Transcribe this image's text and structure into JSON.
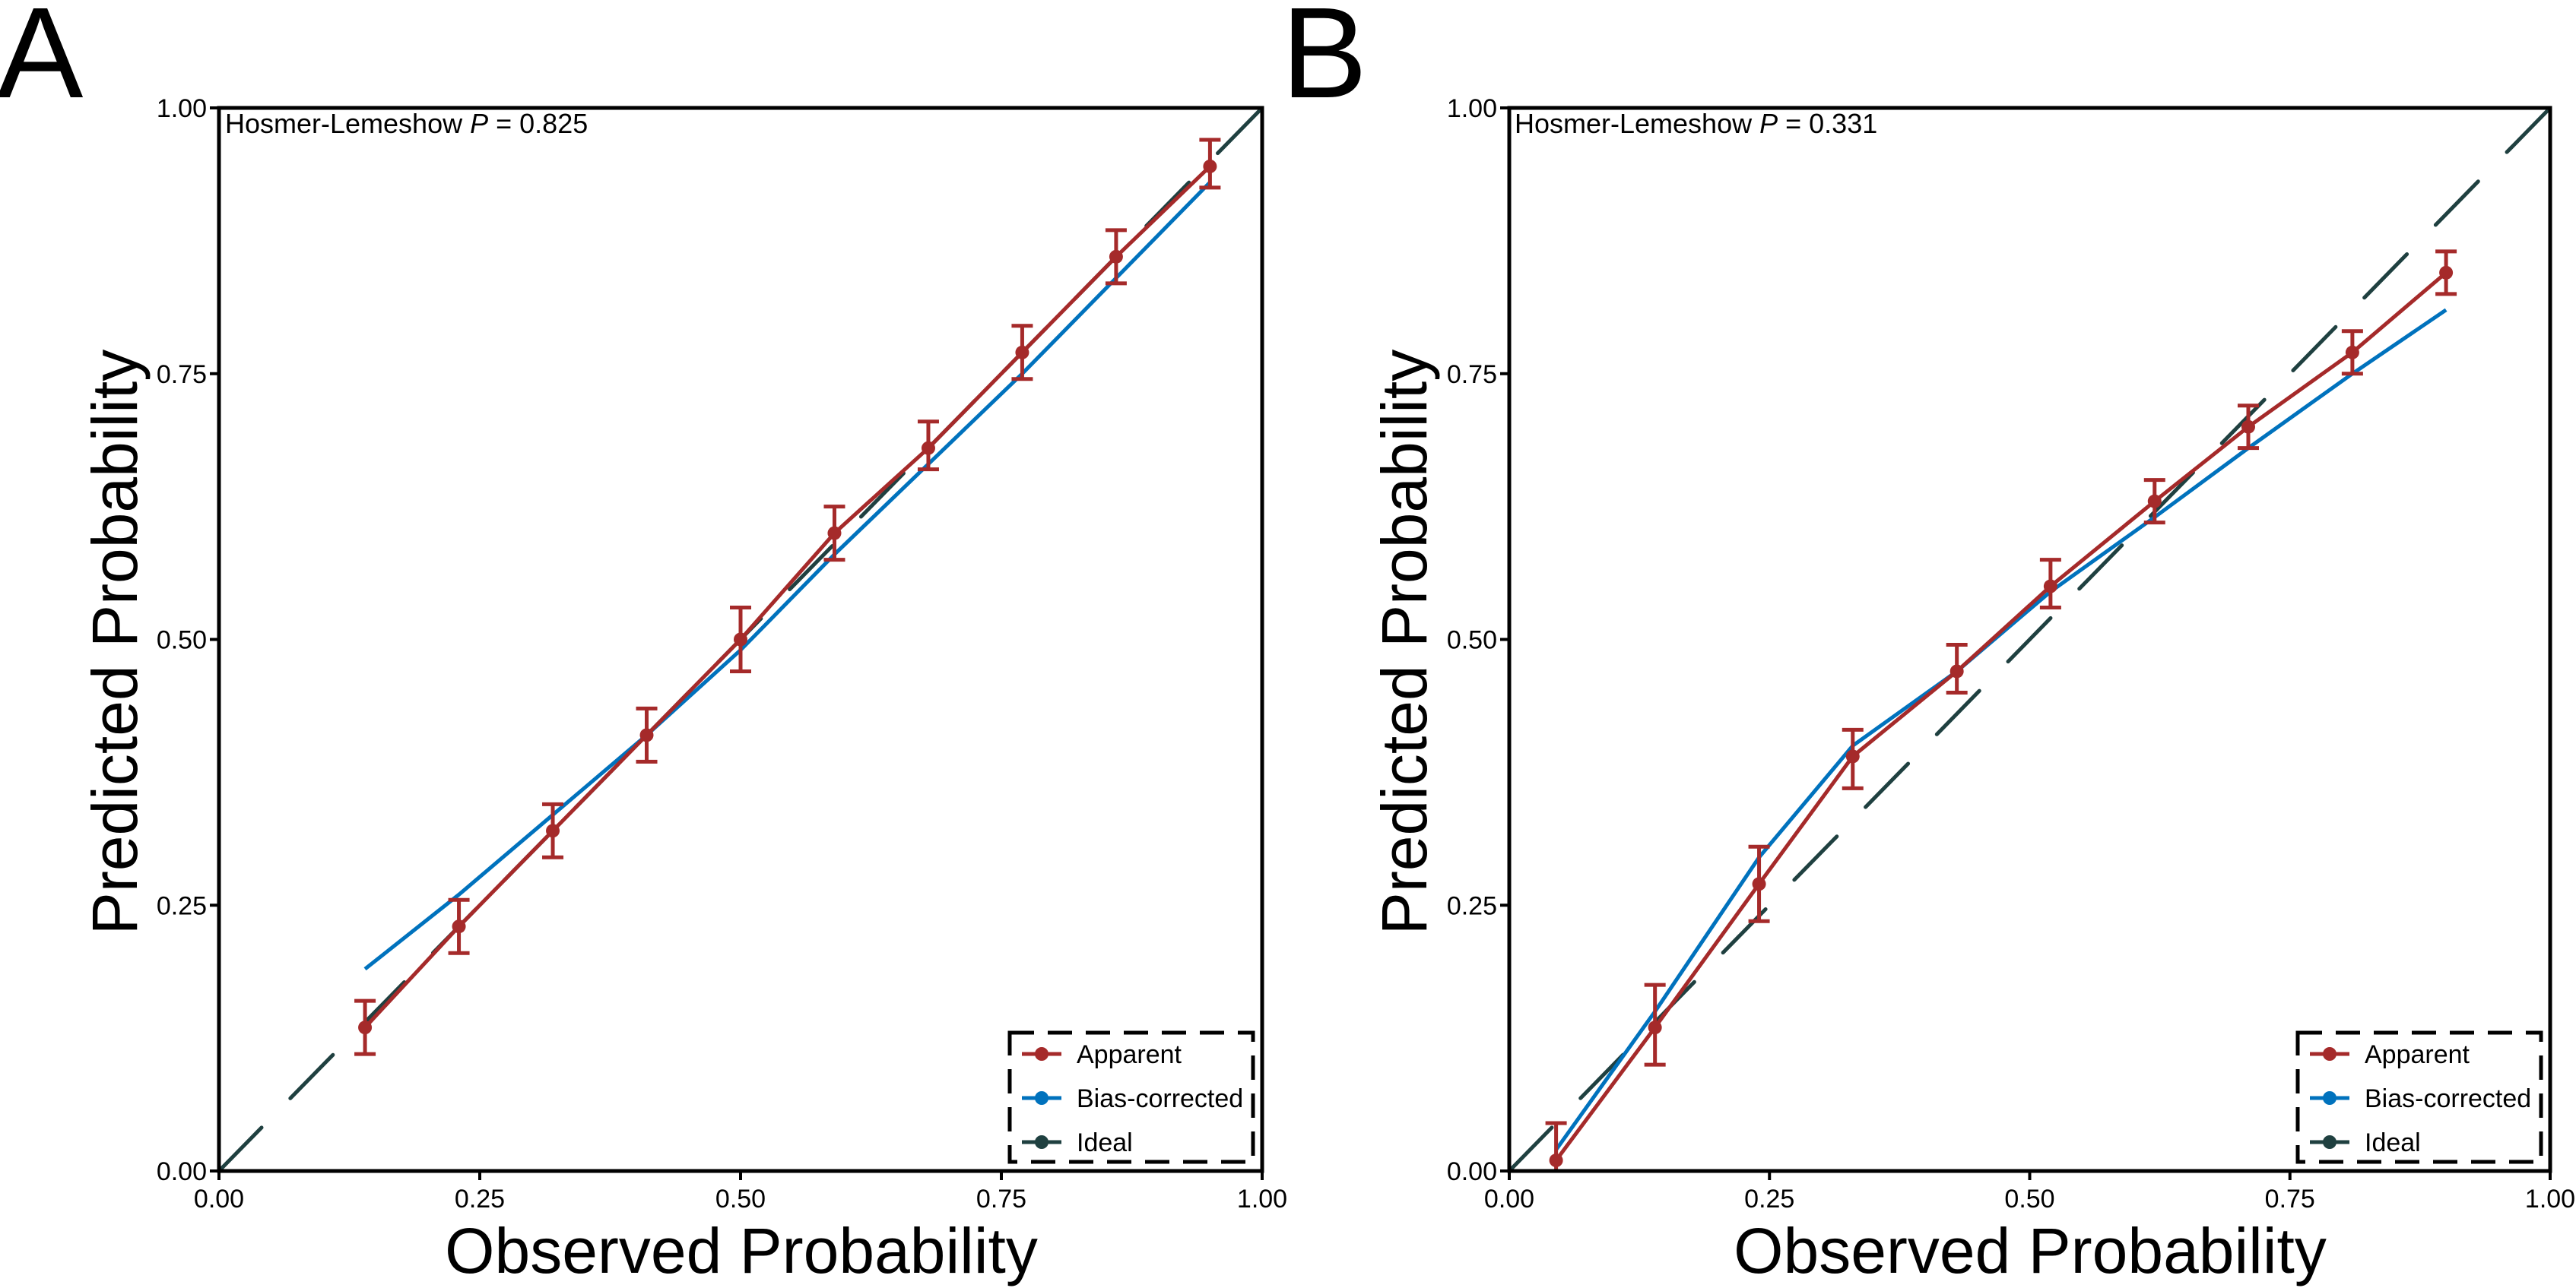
{
  "colors": {
    "apparent": "#A52A2A",
    "bias_corrected": "#0072BD",
    "ideal": "#1F4040",
    "axis": "#000000"
  },
  "chart_data": [
    {
      "panel": "A",
      "type": "line",
      "title": "",
      "annotation": {
        "prefix": "Hosmer-Lemeshow ",
        "italic": "P",
        "suffix": " = 0.825"
      },
      "xlabel": "Observed Probability",
      "ylabel": "Predicted Probability",
      "xlim": [
        0,
        1
      ],
      "ylim": [
        0,
        1
      ],
      "xticks": [
        "0.00",
        "0.25",
        "0.50",
        "0.75",
        "1.00"
      ],
      "yticks": [
        "0.00",
        "0.25",
        "0.50",
        "0.75",
        "1.00"
      ],
      "grid": false,
      "legend": {
        "position": "bottom-right",
        "entries": [
          "Apparent",
          "Bias-corrected",
          "Ideal"
        ]
      },
      "series": [
        {
          "name": "Apparent",
          "x": [
            0.14,
            0.23,
            0.32,
            0.41,
            0.5,
            0.59,
            0.68,
            0.77,
            0.86,
            0.95
          ],
          "y": [
            0.135,
            0.23,
            0.32,
            0.41,
            0.5,
            0.6,
            0.68,
            0.77,
            0.86,
            0.945
          ],
          "err_low": [
            0.11,
            0.205,
            0.295,
            0.385,
            0.47,
            0.575,
            0.66,
            0.745,
            0.835,
            0.925
          ],
          "err_high": [
            0.16,
            0.255,
            0.345,
            0.435,
            0.53,
            0.625,
            0.705,
            0.795,
            0.885,
            0.97
          ]
        },
        {
          "name": "Bias-corrected",
          "x": [
            0.14,
            0.23,
            0.32,
            0.41,
            0.5,
            0.59,
            0.68,
            0.77,
            0.86,
            0.95
          ],
          "y": [
            0.19,
            0.26,
            0.335,
            0.41,
            0.49,
            0.58,
            0.665,
            0.75,
            0.84,
            0.93
          ]
        },
        {
          "name": "Ideal",
          "x": [
            0,
            1
          ],
          "y": [
            0,
            1
          ]
        }
      ]
    },
    {
      "panel": "B",
      "type": "line",
      "title": "",
      "annotation": {
        "prefix": "Hosmer-Lemeshow ",
        "italic": "P",
        "suffix": " = 0.331"
      },
      "xlabel": "Observed Probability",
      "ylabel": "Predicted Probability",
      "xlim": [
        0,
        1
      ],
      "ylim": [
        0,
        1
      ],
      "xticks": [
        "0.00",
        "0.25",
        "0.50",
        "0.75",
        "1.00"
      ],
      "yticks": [
        "0.00",
        "0.25",
        "0.50",
        "0.75",
        "1.00"
      ],
      "grid": false,
      "legend": {
        "position": "bottom-right",
        "entries": [
          "Apparent",
          "Bias-corrected",
          "Ideal"
        ]
      },
      "series": [
        {
          "name": "Apparent",
          "x": [
            0.045,
            0.14,
            0.24,
            0.33,
            0.43,
            0.52,
            0.62,
            0.71,
            0.81,
            0.9
          ],
          "y": [
            0.01,
            0.135,
            0.27,
            0.39,
            0.47,
            0.55,
            0.63,
            0.7,
            0.77,
            0.845
          ],
          "err_low": [
            0.0,
            0.1,
            0.235,
            0.36,
            0.45,
            0.53,
            0.61,
            0.68,
            0.75,
            0.825
          ],
          "err_high": [
            0.045,
            0.175,
            0.305,
            0.415,
            0.495,
            0.575,
            0.65,
            0.72,
            0.79,
            0.865
          ]
        },
        {
          "name": "Bias-corrected",
          "x": [
            0.045,
            0.14,
            0.24,
            0.33,
            0.43,
            0.52,
            0.62,
            0.71,
            0.81,
            0.9
          ],
          "y": [
            0.02,
            0.15,
            0.295,
            0.4,
            0.47,
            0.545,
            0.615,
            0.68,
            0.75,
            0.81
          ]
        },
        {
          "name": "Ideal",
          "x": [
            0,
            1
          ],
          "y": [
            0,
            1
          ]
        }
      ]
    }
  ]
}
